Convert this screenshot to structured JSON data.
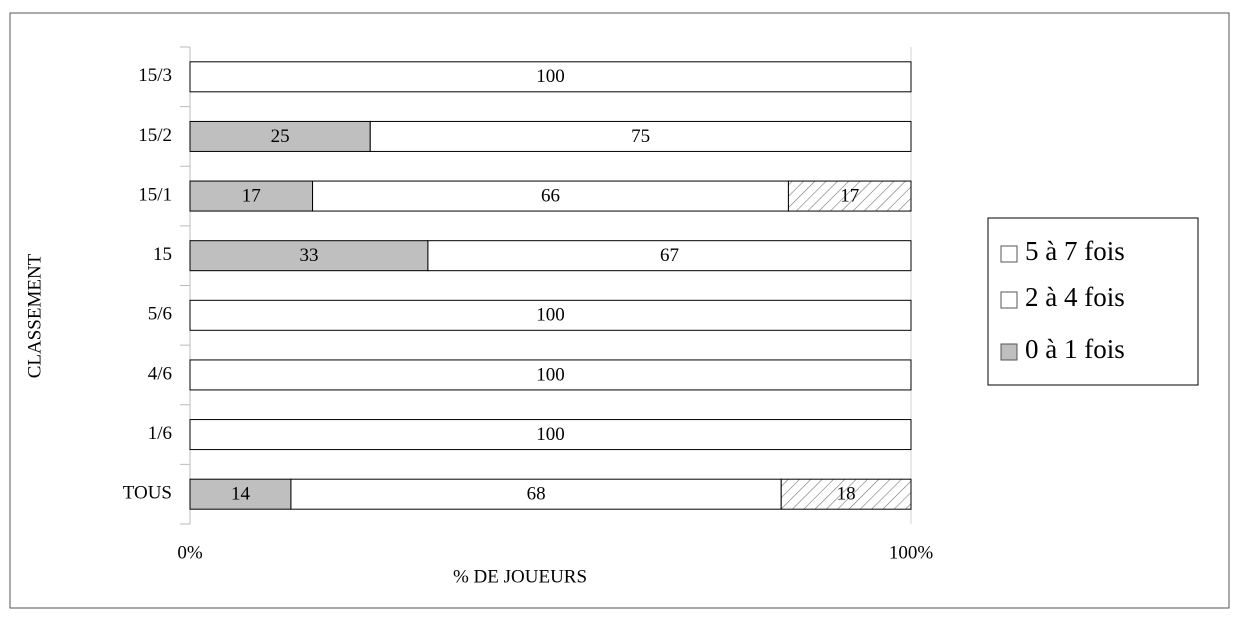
{
  "chart_data": {
    "type": "bar",
    "orientation": "horizontal",
    "stacked": true,
    "xlabel": "% DE JOUEURS",
    "ylabel": "CLASSEMENT",
    "categories": [
      "15/3",
      "15/2",
      "15/1",
      "15",
      "5/6",
      "4/6",
      "1/6",
      "TOUS"
    ],
    "series": [
      {
        "name": "0 à 1 fois",
        "color": "#bfbfbf",
        "values": [
          null,
          25,
          17,
          33,
          null,
          null,
          null,
          14
        ]
      },
      {
        "name": "2 à 4 fois",
        "color": "#ffffff",
        "values": [
          100,
          75,
          66,
          67,
          100,
          100,
          100,
          68
        ]
      },
      {
        "name": "5 à 7 fois",
        "color": "#ffffff",
        "hatch": true,
        "values": [
          null,
          null,
          17,
          null,
          null,
          null,
          null,
          18
        ]
      }
    ],
    "xlim": [
      0,
      100
    ],
    "xticks": [
      {
        "value": 0,
        "label": "0%"
      },
      {
        "value": 100,
        "label": "100%"
      }
    ],
    "legend": "right"
  }
}
